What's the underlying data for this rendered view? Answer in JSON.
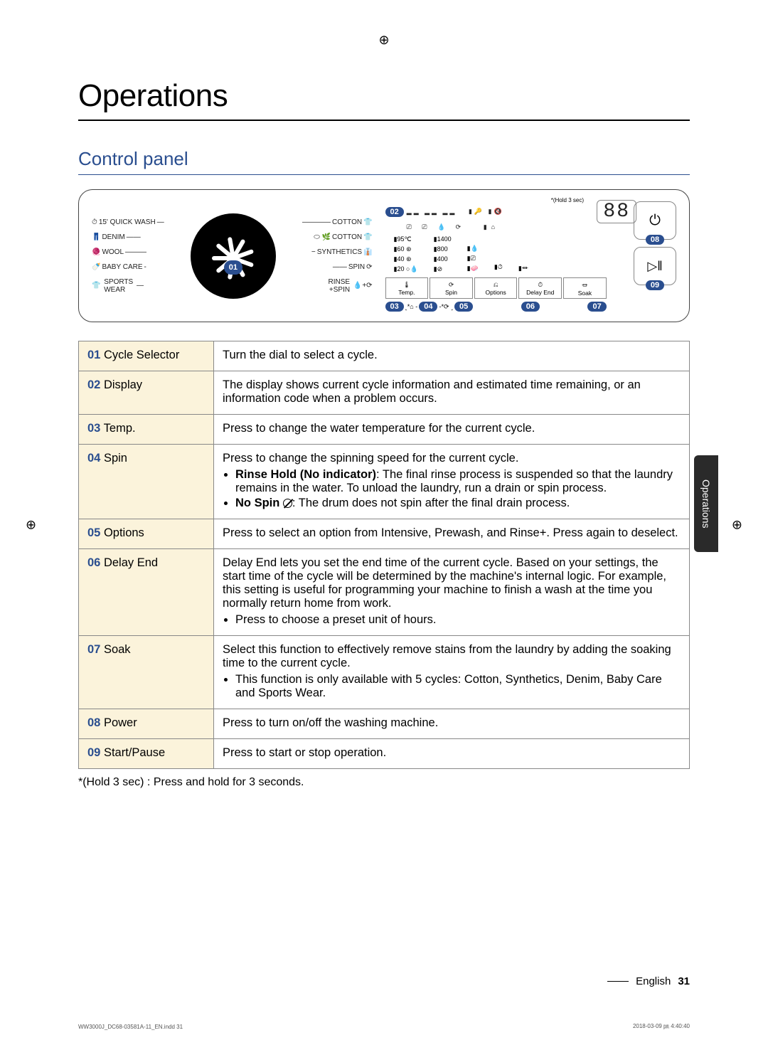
{
  "page": {
    "title": "Operations",
    "section_title": "Control panel",
    "footnote": "*(Hold 3 sec) : Press and hold for 3 seconds.",
    "language": "English",
    "page_number": "31",
    "side_tab": "Operations",
    "doc_code_left": "WW3000J_DC68-03581A-11_EN.indd   31",
    "doc_code_right": "2018-03-09   ㏘ 4:40:40",
    "reg_mark": "⊕"
  },
  "panel": {
    "left_programs": [
      "15' QUICK WASH",
      "DENIM",
      "WOOL",
      "BABY CARE",
      "SPORTS\nWEAR"
    ],
    "right_programs": [
      "COTTON",
      "COTTON",
      "SYNTHETICS",
      "SPIN",
      "RINSE\n+SPIN"
    ],
    "dial_badge": "01",
    "hold_note": "*(Hold 3 sec)",
    "display_badge": "02",
    "display_88": "88",
    "temps": [
      "95℃",
      "60",
      "40",
      "20"
    ],
    "spins": [
      "1400",
      "800",
      "400"
    ],
    "buttons": [
      {
        "icon": "🌡",
        "label": "Temp."
      },
      {
        "icon": "⟳",
        "label": "Spin"
      },
      {
        "icon": "⎌",
        "label": "Options"
      },
      {
        "icon": "⏱",
        "label": "Delay End"
      },
      {
        "icon": "⏛",
        "label": "Soak"
      }
    ],
    "btn_badges": [
      "03",
      "04",
      "05",
      "06",
      "07"
    ],
    "btn_sep_l": "˻*⌂ -",
    "btn_sep_r": "-*⟳ ˼",
    "power_badge": "08",
    "start_badge": "09",
    "power_icon": "⏻",
    "start_icon": "▷‖"
  },
  "rows": [
    {
      "num": "01",
      "name": "Cycle Selector",
      "desc": "Turn the dial to select a cycle."
    },
    {
      "num": "02",
      "name": "Display",
      "desc": "The display shows current cycle information and estimated time remaining, or an information code when a problem occurs."
    },
    {
      "num": "03",
      "name": "Temp.",
      "desc": "Press to change the water temperature for the current cycle."
    },
    {
      "num": "04",
      "name": "Spin",
      "desc": "Press to change the spinning speed for the current cycle.",
      "bullets": [
        {
          "lead": "Rinse Hold (No indicator)",
          "rest": ": The final rinse process is suspended so that the laundry remains in the water. To unload the laundry, run a drain or spin process."
        },
        {
          "lead": "No Spin ",
          "icon": true,
          "rest": ": The drum does not spin after the final drain process."
        }
      ]
    },
    {
      "num": "05",
      "name": "Options",
      "desc": "Press to select an option from Intensive, Prewash, and Rinse+. Press again to deselect."
    },
    {
      "num": "06",
      "name": "Delay End",
      "desc": "Delay End lets you set the end time of the current cycle. Based on your settings, the start time of the cycle will be determined by the machine's internal logic. For example, this setting is useful for programming your machine to finish a wash at the time you normally return home from work.",
      "bullets": [
        {
          "rest": "Press to choose a preset unit of hours."
        }
      ]
    },
    {
      "num": "07",
      "name": "Soak",
      "desc": "Select this function to effectively remove stains from the laundry by adding the soaking time to the current cycle.",
      "bullets": [
        {
          "rest": "This function is only available with 5 cycles: Cotton, Synthetics, Denim, Baby Care and Sports Wear."
        }
      ]
    },
    {
      "num": "08",
      "name": "Power",
      "desc": "Press to turn on/off the washing machine."
    },
    {
      "num": "09",
      "name": "Start/Pause",
      "desc": "Press to start or stop operation."
    }
  ]
}
